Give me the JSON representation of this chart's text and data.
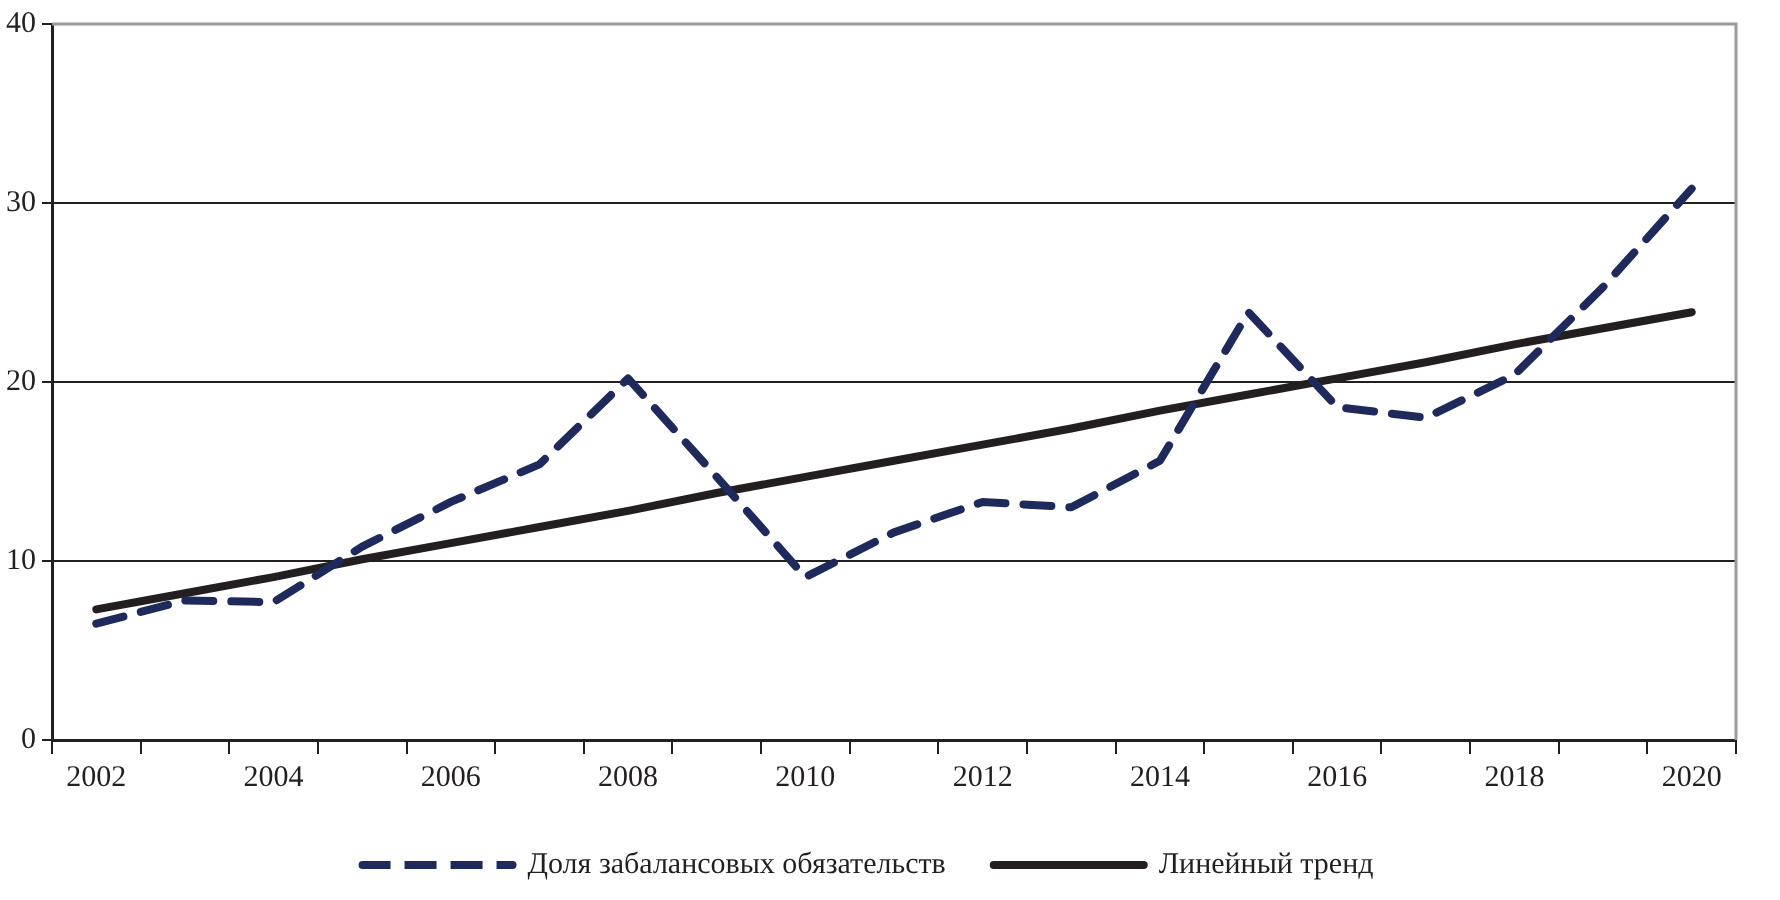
{
  "chart_data": {
    "type": "line",
    "categories": [
      "2002",
      null,
      "2004",
      null,
      "2006",
      null,
      "2008",
      null,
      "2010",
      null,
      "2012",
      null,
      "2014",
      null,
      "2016",
      null,
      "2018",
      null,
      "2020"
    ],
    "series": [
      {
        "name": "Доля забалансовых обязательств",
        "color": "#1f2a5c",
        "line_style": "dashed",
        "values": [
          6.5,
          7.8,
          7.7,
          10.8,
          13.3,
          15.4,
          20.2,
          14.7,
          9.1,
          11.6,
          13.3,
          13.0,
          15.6,
          23.9,
          18.6,
          18.0,
          20.4,
          25.3,
          30.8
        ]
      },
      {
        "name": "Линейный тренд",
        "color": "#231f20",
        "line_style": "solid",
        "values": [
          7.3,
          8.2,
          9.1,
          10.1,
          11.0,
          11.9,
          12.8,
          13.8,
          14.7,
          15.6,
          16.5,
          17.4,
          18.4,
          19.3,
          20.2,
          21.1,
          22.1,
          23.0,
          23.9
        ]
      }
    ],
    "ylim": [
      0,
      40
    ],
    "yticks": [
      0,
      10,
      20,
      30,
      40
    ],
    "grid": "y",
    "legend": "bottom",
    "marker": "none"
  }
}
